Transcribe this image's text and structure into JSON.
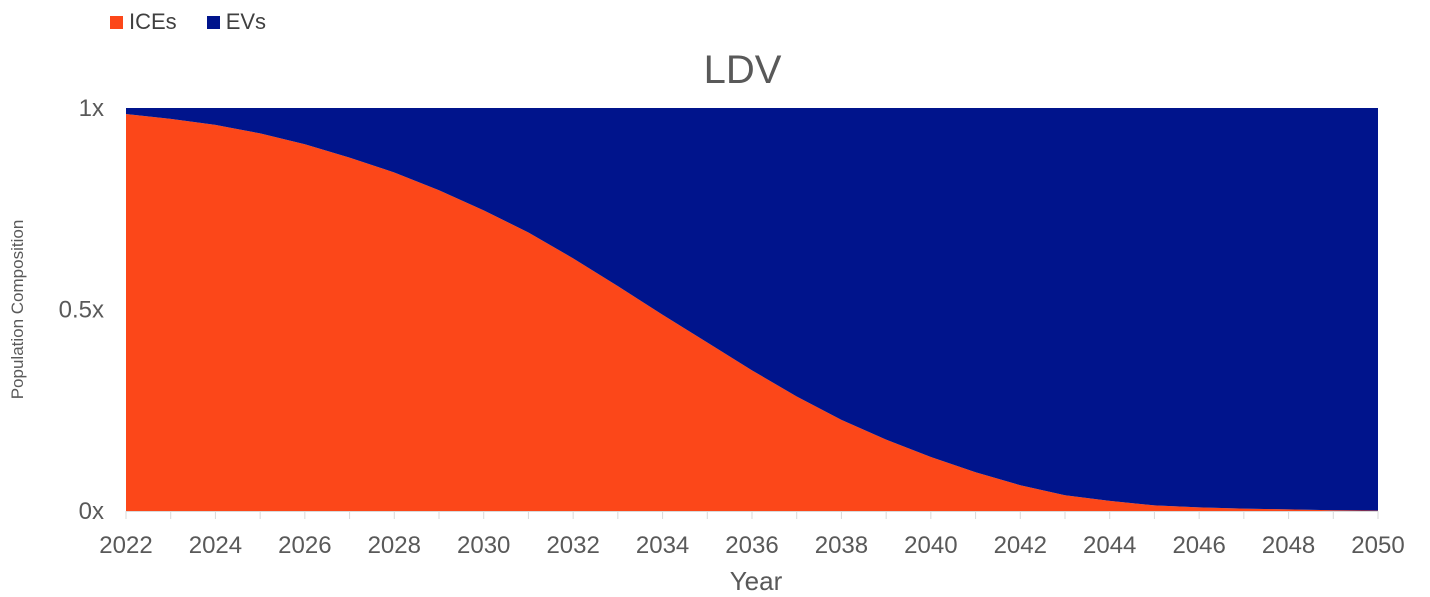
{
  "chart_data": {
    "type": "area",
    "stacked": true,
    "title": "LDV",
    "xlabel": "Year",
    "ylabel": "Population Composition",
    "x": [
      2022,
      2023,
      2024,
      2025,
      2026,
      2027,
      2028,
      2029,
      2030,
      2031,
      2032,
      2033,
      2034,
      2035,
      2036,
      2037,
      2038,
      2039,
      2040,
      2041,
      2042,
      2043,
      2044,
      2045,
      2046,
      2047,
      2048,
      2049,
      2050
    ],
    "x_tick_labels": [
      "2022",
      "2024",
      "2026",
      "2028",
      "2030",
      "2032",
      "2034",
      "2036",
      "2038",
      "2040",
      "2042",
      "2044",
      "2046",
      "2048",
      "2050"
    ],
    "y_tick_labels": [
      "0x",
      "0.5x",
      "1x"
    ],
    "ylim": [
      0,
      1
    ],
    "series": [
      {
        "name": "ICEs",
        "color": "#FC4719",
        "values": [
          0.985,
          0.973,
          0.958,
          0.937,
          0.91,
          0.877,
          0.84,
          0.796,
          0.746,
          0.691,
          0.627,
          0.558,
          0.487,
          0.418,
          0.349,
          0.284,
          0.226,
          0.177,
          0.134,
          0.096,
          0.064,
          0.039,
          0.025,
          0.014,
          0.009,
          0.006,
          0.004,
          0.002,
          0.001
        ]
      },
      {
        "name": "EVs",
        "color": "#00148C",
        "values": [
          0.015,
          0.027,
          0.042,
          0.063,
          0.09,
          0.123,
          0.16,
          0.204,
          0.254,
          0.309,
          0.373,
          0.442,
          0.513,
          0.582,
          0.651,
          0.716,
          0.774,
          0.823,
          0.866,
          0.904,
          0.936,
          0.961,
          0.975,
          0.986,
          0.991,
          0.994,
          0.996,
          0.998,
          0.999
        ]
      }
    ],
    "legend_position": "top-left",
    "grid": false
  }
}
